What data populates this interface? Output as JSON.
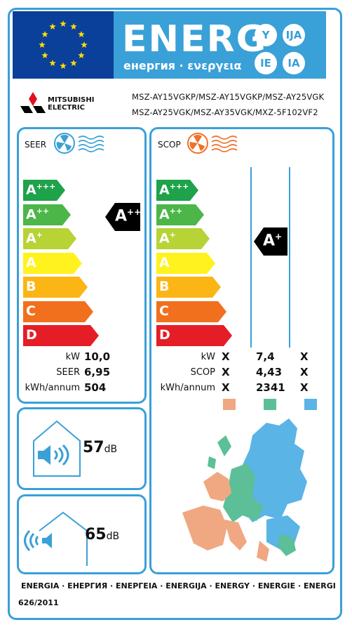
{
  "header": {
    "energy_word": "ENERG",
    "energy_sub": "енергия · ενεργεια",
    "lang_circles": [
      "Y",
      "IJA",
      "IE",
      "IA"
    ]
  },
  "brand": {
    "line1": "MITSUBISHI",
    "line2": "ELECTRIC"
  },
  "models": {
    "line1": "MSZ-AY15VGKP/MSZ-AY15VGKP/MSZ-AY25VGK",
    "line2": "MSZ-AY25VGK/MSZ-AY35VGK/MXZ-5F102VF2"
  },
  "scale": [
    {
      "letter": "A",
      "sup": "+++",
      "color": "#1ea24a"
    },
    {
      "letter": "A",
      "sup": "++",
      "color": "#4cb648"
    },
    {
      "letter": "A",
      "sup": "+",
      "color": "#b7d336"
    },
    {
      "letter": "A",
      "sup": "",
      "color": "#fff21e"
    },
    {
      "letter": "B",
      "sup": "",
      "color": "#fbb514"
    },
    {
      "letter": "C",
      "sup": "",
      "color": "#f0701e"
    },
    {
      "letter": "D",
      "sup": "",
      "color": "#e41d27"
    }
  ],
  "seer": {
    "title": "SEER",
    "class": {
      "letter": "A",
      "sup": "++"
    },
    "rows": [
      {
        "label": "kW",
        "value": "10,0"
      },
      {
        "label": "SEER",
        "value": "6,95"
      },
      {
        "label": "kWh/annum",
        "value": "504"
      }
    ]
  },
  "scop": {
    "title": "SCOP",
    "class": {
      "letter": "A",
      "sup": "+"
    },
    "rows": [
      {
        "label": "kW",
        "warm": "X",
        "avg": "7,4",
        "cold": "X"
      },
      {
        "label": "SCOP",
        "warm": "X",
        "avg": "4,43",
        "cold": "X"
      },
      {
        "label": "kWh/annum",
        "warm": "X",
        "avg": "2341",
        "cold": "X"
      }
    ],
    "zone_colors": [
      "#f0a882",
      "#5cbf98",
      "#5ab4e6"
    ]
  },
  "noise_indoor": {
    "value": "57",
    "unit": "dB"
  },
  "noise_outdoor": {
    "value": "65",
    "unit": "dB"
  },
  "footer": {
    "languages": "ENERGIA · ЕНЕРГИЯ · ΕΝΕΡΓΕΙΑ · ENERGIJA · ENERGY · ENERGIE · ENERGI",
    "regulation": "626/2011"
  },
  "colors": {
    "frame": "#3aa0d8",
    "eu_blue": "#0a3f9a",
    "eu_star": "#ffdd00",
    "class_arrow": "#000000"
  }
}
